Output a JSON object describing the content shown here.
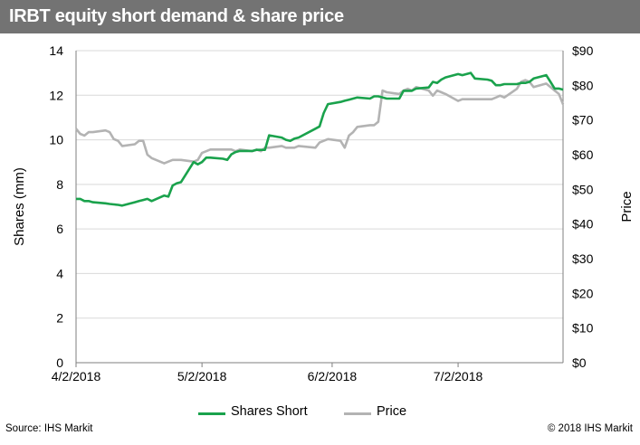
{
  "title": "IRBT equity short demand & share price",
  "source": "Source: IHS Markit",
  "copyright": "© 2018 IHS Markit",
  "colors": {
    "title_bar": "#737373",
    "shares_short": "#1aa24c",
    "price": "#b3b3b3",
    "grid": "#d9d9d9",
    "axis": "#7f7f7f"
  },
  "chart_data": {
    "type": "line",
    "title": "IRBT equity short demand & share price",
    "xlabel": "",
    "ylabel": "Shares (mm)",
    "y2label": "Price",
    "x_ticks": [
      "4/2/2018",
      "5/2/2018",
      "6/2/2018",
      "7/2/2018"
    ],
    "y_ticks": [
      "0",
      "2",
      "4",
      "6",
      "8",
      "10",
      "12",
      "14"
    ],
    "y2_ticks": [
      "$0",
      "$10",
      "$20",
      "$30",
      "$40",
      "$50",
      "$60",
      "$70",
      "$80",
      "$90"
    ],
    "ylim": [
      0,
      14
    ],
    "y2lim": [
      0,
      90
    ],
    "xlim": [
      "2018-04-02",
      "2018-07-27"
    ],
    "grid": "horizontal",
    "legend_position": "bottom",
    "series": [
      {
        "name": "Shares Short",
        "axis": "left",
        "points": [
          [
            "2018-04-02",
            7.35
          ],
          [
            "2018-04-03",
            7.35
          ],
          [
            "2018-04-04",
            7.25
          ],
          [
            "2018-04-05",
            7.25
          ],
          [
            "2018-04-06",
            7.2
          ],
          [
            "2018-04-09",
            7.15
          ],
          [
            "2018-04-10",
            7.12
          ],
          [
            "2018-04-11",
            7.1
          ],
          [
            "2018-04-12",
            7.08
          ],
          [
            "2018-04-13",
            7.05
          ],
          [
            "2018-04-16",
            7.2
          ],
          [
            "2018-04-17",
            7.25
          ],
          [
            "2018-04-18",
            7.3
          ],
          [
            "2018-04-19",
            7.35
          ],
          [
            "2018-04-20",
            7.25
          ],
          [
            "2018-04-23",
            7.5
          ],
          [
            "2018-04-24",
            7.45
          ],
          [
            "2018-04-25",
            7.95
          ],
          [
            "2018-04-26",
            8.05
          ],
          [
            "2018-04-27",
            8.1
          ],
          [
            "2018-04-30",
            9.0
          ],
          [
            "2018-05-01",
            8.9
          ],
          [
            "2018-05-02",
            9.0
          ],
          [
            "2018-05-03",
            9.2
          ],
          [
            "2018-05-04",
            9.2
          ],
          [
            "2018-05-07",
            9.15
          ],
          [
            "2018-05-08",
            9.1
          ],
          [
            "2018-05-09",
            9.35
          ],
          [
            "2018-05-10",
            9.45
          ],
          [
            "2018-05-11",
            9.5
          ],
          [
            "2018-05-14",
            9.5
          ],
          [
            "2018-05-15",
            9.55
          ],
          [
            "2018-05-16",
            9.55
          ],
          [
            "2018-05-17",
            9.55
          ],
          [
            "2018-05-18",
            10.2
          ],
          [
            "2018-05-21",
            10.1
          ],
          [
            "2018-05-22",
            10.0
          ],
          [
            "2018-05-23",
            9.95
          ],
          [
            "2018-05-24",
            10.05
          ],
          [
            "2018-05-25",
            10.1
          ],
          [
            "2018-05-29",
            10.5
          ],
          [
            "2018-05-30",
            10.6
          ],
          [
            "2018-05-31",
            11.2
          ],
          [
            "2018-06-01",
            11.6
          ],
          [
            "2018-06-04",
            11.7
          ],
          [
            "2018-06-05",
            11.75
          ],
          [
            "2018-06-06",
            11.8
          ],
          [
            "2018-06-07",
            11.85
          ],
          [
            "2018-06-08",
            11.9
          ],
          [
            "2018-06-11",
            11.85
          ],
          [
            "2018-06-12",
            11.95
          ],
          [
            "2018-06-13",
            11.95
          ],
          [
            "2018-06-14",
            11.9
          ],
          [
            "2018-06-15",
            11.85
          ],
          [
            "2018-06-18",
            11.85
          ],
          [
            "2018-06-19",
            12.2
          ],
          [
            "2018-06-20",
            12.2
          ],
          [
            "2018-06-21",
            12.2
          ],
          [
            "2018-06-22",
            12.3
          ],
          [
            "2018-06-25",
            12.35
          ],
          [
            "2018-06-26",
            12.6
          ],
          [
            "2018-06-27",
            12.55
          ],
          [
            "2018-06-28",
            12.7
          ],
          [
            "2018-06-29",
            12.8
          ],
          [
            "2018-07-02",
            12.95
          ],
          [
            "2018-07-03",
            12.9
          ],
          [
            "2018-07-05",
            13.0
          ],
          [
            "2018-07-06",
            12.75
          ],
          [
            "2018-07-09",
            12.7
          ],
          [
            "2018-07-10",
            12.65
          ],
          [
            "2018-07-11",
            12.45
          ],
          [
            "2018-07-12",
            12.45
          ],
          [
            "2018-07-13",
            12.5
          ],
          [
            "2018-07-16",
            12.5
          ],
          [
            "2018-07-17",
            12.55
          ],
          [
            "2018-07-18",
            12.55
          ],
          [
            "2018-07-19",
            12.6
          ],
          [
            "2018-07-20",
            12.75
          ],
          [
            "2018-07-23",
            12.9
          ],
          [
            "2018-07-24",
            12.6
          ],
          [
            "2018-07-25",
            12.3
          ],
          [
            "2018-07-26",
            12.3
          ],
          [
            "2018-07-27",
            12.25
          ]
        ]
      },
      {
        "name": "Price",
        "axis": "right",
        "points": [
          [
            "2018-04-02",
            67.5
          ],
          [
            "2018-04-03",
            66.0
          ],
          [
            "2018-04-04",
            65.5
          ],
          [
            "2018-04-05",
            66.5
          ],
          [
            "2018-04-06",
            66.5
          ],
          [
            "2018-04-09",
            67.0
          ],
          [
            "2018-04-10",
            66.5
          ],
          [
            "2018-04-11",
            64.5
          ],
          [
            "2018-04-12",
            64.0
          ],
          [
            "2018-04-13",
            62.5
          ],
          [
            "2018-04-16",
            63.0
          ],
          [
            "2018-04-17",
            64.0
          ],
          [
            "2018-04-18",
            64.0
          ],
          [
            "2018-04-19",
            60.0
          ],
          [
            "2018-04-20",
            59.0
          ],
          [
            "2018-04-23",
            57.5
          ],
          [
            "2018-04-24",
            58.0
          ],
          [
            "2018-04-25",
            58.5
          ],
          [
            "2018-04-26",
            58.5
          ],
          [
            "2018-04-27",
            58.5
          ],
          [
            "2018-04-30",
            58.0
          ],
          [
            "2018-05-01",
            58.5
          ],
          [
            "2018-05-02",
            60.5
          ],
          [
            "2018-05-03",
            61.0
          ],
          [
            "2018-05-04",
            61.5
          ],
          [
            "2018-05-07",
            61.5
          ],
          [
            "2018-05-08",
            61.5
          ],
          [
            "2018-05-09",
            61.5
          ],
          [
            "2018-05-10",
            61.0
          ],
          [
            "2018-05-11",
            61.5
          ],
          [
            "2018-05-14",
            61.0
          ],
          [
            "2018-05-15",
            61.5
          ],
          [
            "2018-05-16",
            61.0
          ],
          [
            "2018-05-17",
            62.0
          ],
          [
            "2018-05-18",
            62.0
          ],
          [
            "2018-05-21",
            62.5
          ],
          [
            "2018-05-22",
            62.0
          ],
          [
            "2018-05-23",
            62.0
          ],
          [
            "2018-05-24",
            62.0
          ],
          [
            "2018-05-25",
            62.5
          ],
          [
            "2018-05-29",
            62.0
          ],
          [
            "2018-05-30",
            63.5
          ],
          [
            "2018-05-31",
            64.0
          ],
          [
            "2018-06-01",
            64.5
          ],
          [
            "2018-06-04",
            64.0
          ],
          [
            "2018-06-05",
            62.0
          ],
          [
            "2018-06-06",
            65.5
          ],
          [
            "2018-06-07",
            66.5
          ],
          [
            "2018-06-08",
            68.0
          ],
          [
            "2018-06-11",
            68.5
          ],
          [
            "2018-06-12",
            68.5
          ],
          [
            "2018-06-13",
            69.5
          ],
          [
            "2018-06-14",
            78.5
          ],
          [
            "2018-06-15",
            78.0
          ],
          [
            "2018-06-18",
            77.5
          ],
          [
            "2018-06-19",
            78.5
          ],
          [
            "2018-06-20",
            79.0
          ],
          [
            "2018-06-21",
            78.5
          ],
          [
            "2018-06-22",
            79.5
          ],
          [
            "2018-06-25",
            78.5
          ],
          [
            "2018-06-26",
            77.0
          ],
          [
            "2018-06-27",
            78.5
          ],
          [
            "2018-06-28",
            78.0
          ],
          [
            "2018-06-29",
            77.5
          ],
          [
            "2018-07-02",
            75.5
          ],
          [
            "2018-07-03",
            76.0
          ],
          [
            "2018-07-05",
            76.0
          ],
          [
            "2018-07-06",
            76.0
          ],
          [
            "2018-07-09",
            76.0
          ],
          [
            "2018-07-10",
            76.0
          ],
          [
            "2018-07-11",
            76.5
          ],
          [
            "2018-07-12",
            77.0
          ],
          [
            "2018-07-13",
            76.5
          ],
          [
            "2018-07-16",
            79.0
          ],
          [
            "2018-07-17",
            81.0
          ],
          [
            "2018-07-18",
            81.5
          ],
          [
            "2018-07-19",
            81.0
          ],
          [
            "2018-07-20",
            79.5
          ],
          [
            "2018-07-23",
            80.5
          ],
          [
            "2018-07-24",
            79.5
          ],
          [
            "2018-07-25",
            78.5
          ],
          [
            "2018-07-26",
            77.5
          ],
          [
            "2018-07-27",
            74.5
          ]
        ]
      }
    ]
  }
}
